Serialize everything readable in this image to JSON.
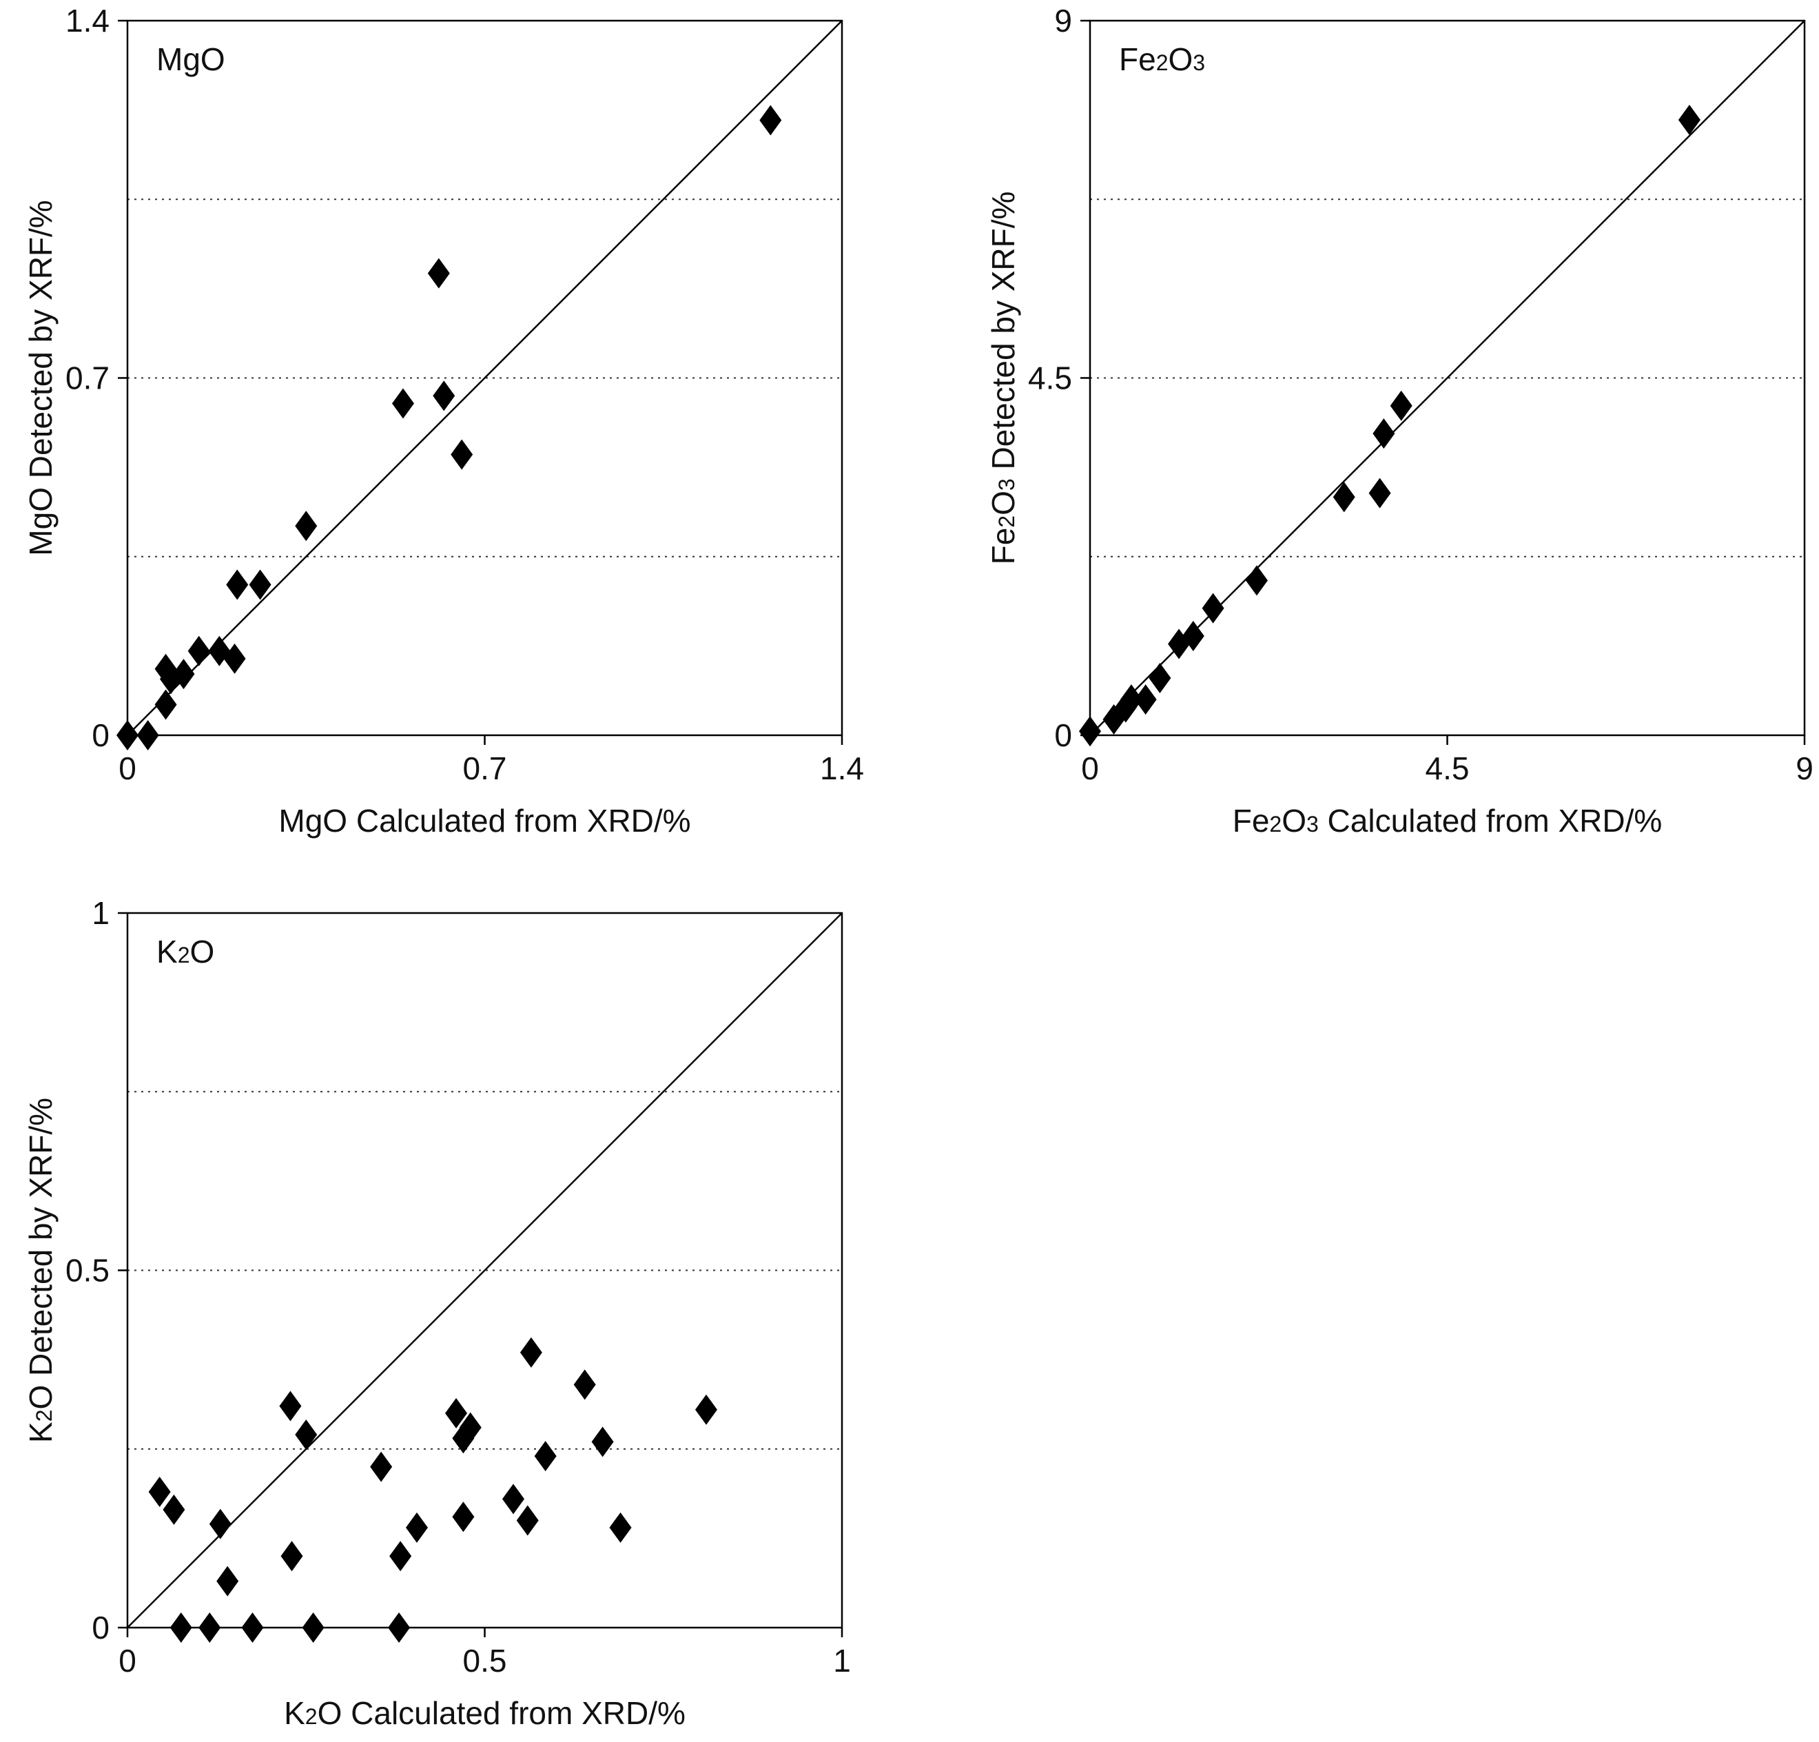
{
  "chart_data": [
    {
      "type": "scatter",
      "panel_label": {
        "pre": "MgO",
        "sub1": "",
        "mid": "",
        "sub2": "",
        "post": ""
      },
      "xlabel": {
        "pre": "MgO Calculated from XRD/%",
        "sub1": "",
        "mid": "",
        "sub2": "",
        "post": ""
      },
      "ylabel": {
        "pre": "MgO Detected by XRF/%",
        "sub1": "",
        "mid": "",
        "sub2": "",
        "post": ""
      },
      "xlim": [
        0,
        1.4
      ],
      "ylim": [
        0,
        1.4
      ],
      "x_ticks": [
        {
          "value": 0,
          "label": "0"
        },
        {
          "value": 0.7,
          "label": "0.7"
        },
        {
          "value": 1.4,
          "label": "1.4"
        }
      ],
      "y_ticks": [
        {
          "value": 0,
          "label": "0"
        },
        {
          "value": 0.7,
          "label": "0.7"
        },
        {
          "value": 1.4,
          "label": "1.4"
        }
      ],
      "gridlines_y": [
        0.35,
        0.7,
        1.05
      ],
      "reference_line": "y = x",
      "marker": "diamond",
      "color": "#000000",
      "points": [
        {
          "x": 0.0,
          "y": 0.0
        },
        {
          "x": 0.04,
          "y": 0.0
        },
        {
          "x": 0.075,
          "y": 0.06
        },
        {
          "x": 0.075,
          "y": 0.13
        },
        {
          "x": 0.085,
          "y": 0.11
        },
        {
          "x": 0.11,
          "y": 0.12
        },
        {
          "x": 0.14,
          "y": 0.165
        },
        {
          "x": 0.18,
          "y": 0.165
        },
        {
          "x": 0.21,
          "y": 0.15
        },
        {
          "x": 0.215,
          "y": 0.295
        },
        {
          "x": 0.26,
          "y": 0.295
        },
        {
          "x": 0.35,
          "y": 0.41
        },
        {
          "x": 0.54,
          "y": 0.65
        },
        {
          "x": 0.62,
          "y": 0.665
        },
        {
          "x": 0.655,
          "y": 0.55
        },
        {
          "x": 0.61,
          "y": 0.905
        },
        {
          "x": 1.26,
          "y": 1.205
        }
      ]
    },
    {
      "type": "scatter",
      "panel_label": {
        "pre": "Fe",
        "sub1": "2",
        "mid": "O",
        "sub2": "3",
        "post": ""
      },
      "xlabel": {
        "pre": "Fe",
        "sub1": "2",
        "mid": "O",
        "sub2": "3",
        "post": " Calculated from XRD/%"
      },
      "ylabel": {
        "pre": "Fe",
        "sub1": "2",
        "mid": "O",
        "sub2": "3",
        "post": " Detected by XRF/%"
      },
      "xlim": [
        0,
        9
      ],
      "ylim": [
        0,
        9
      ],
      "x_ticks": [
        {
          "value": 0,
          "label": "0"
        },
        {
          "value": 4.5,
          "label": "4.5"
        },
        {
          "value": 9,
          "label": "9"
        }
      ],
      "y_ticks": [
        {
          "value": 0,
          "label": "0"
        },
        {
          "value": 4.5,
          "label": "4.5"
        },
        {
          "value": 9,
          "label": "9"
        }
      ],
      "gridlines_y": [
        2.25,
        4.5,
        6.75
      ],
      "reference_line": "y = x",
      "marker": "diamond",
      "color": "#000000",
      "points": [
        {
          "x": 0.0,
          "y": 0.05
        },
        {
          "x": 0.3,
          "y": 0.2
        },
        {
          "x": 0.45,
          "y": 0.35
        },
        {
          "x": 0.52,
          "y": 0.45
        },
        {
          "x": 0.7,
          "y": 0.45
        },
        {
          "x": 0.88,
          "y": 0.72
        },
        {
          "x": 1.12,
          "y": 1.15
        },
        {
          "x": 1.3,
          "y": 1.25
        },
        {
          "x": 1.55,
          "y": 1.6
        },
        {
          "x": 2.1,
          "y": 1.95
        },
        {
          "x": 3.2,
          "y": 3.0
        },
        {
          "x": 3.65,
          "y": 3.05
        },
        {
          "x": 3.7,
          "y": 3.8
        },
        {
          "x": 3.92,
          "y": 4.15
        },
        {
          "x": 7.55,
          "y": 7.75
        }
      ]
    },
    {
      "type": "scatter",
      "panel_label": {
        "pre": "K",
        "sub1": "2",
        "mid": "O",
        "sub2": "",
        "post": ""
      },
      "xlabel": {
        "pre": "K",
        "sub1": "2",
        "mid": "O Calculated from XRD/%",
        "sub2": "",
        "post": ""
      },
      "ylabel": {
        "pre": "K",
        "sub1": "2",
        "mid": "O Detected by XRF/%",
        "sub2": "",
        "post": ""
      },
      "xlim": [
        0,
        1
      ],
      "ylim": [
        0,
        1
      ],
      "x_ticks": [
        {
          "value": 0,
          "label": "0"
        },
        {
          "value": 0.5,
          "label": "0.5"
        },
        {
          "value": 1,
          "label": "1"
        }
      ],
      "y_ticks": [
        {
          "value": 0,
          "label": "0"
        },
        {
          "value": 0.5,
          "label": "0.5"
        },
        {
          "value": 1,
          "label": "1"
        }
      ],
      "gridlines_y": [
        0.25,
        0.5,
        0.75
      ],
      "reference_line": "y = x",
      "marker": "diamond",
      "color": "#000000",
      "points": [
        {
          "x": 0.045,
          "y": 0.19
        },
        {
          "x": 0.065,
          "y": 0.165
        },
        {
          "x": 0.075,
          "y": 0.0
        },
        {
          "x": 0.115,
          "y": 0.0
        },
        {
          "x": 0.13,
          "y": 0.145
        },
        {
          "x": 0.14,
          "y": 0.065
        },
        {
          "x": 0.175,
          "y": 0.0
        },
        {
          "x": 0.23,
          "y": 0.1
        },
        {
          "x": 0.228,
          "y": 0.31
        },
        {
          "x": 0.25,
          "y": 0.27
        },
        {
          "x": 0.26,
          "y": 0.0
        },
        {
          "x": 0.355,
          "y": 0.225
        },
        {
          "x": 0.38,
          "y": 0.0
        },
        {
          "x": 0.382,
          "y": 0.1
        },
        {
          "x": 0.405,
          "y": 0.14
        },
        {
          "x": 0.46,
          "y": 0.3
        },
        {
          "x": 0.47,
          "y": 0.155
        },
        {
          "x": 0.47,
          "y": 0.265
        },
        {
          "x": 0.48,
          "y": 0.28
        },
        {
          "x": 0.54,
          "y": 0.18
        },
        {
          "x": 0.56,
          "y": 0.15
        },
        {
          "x": 0.565,
          "y": 0.385
        },
        {
          "x": 0.585,
          "y": 0.24
        },
        {
          "x": 0.64,
          "y": 0.34
        },
        {
          "x": 0.665,
          "y": 0.26
        },
        {
          "x": 0.69,
          "y": 0.14
        },
        {
          "x": 0.81,
          "y": 0.305
        }
      ]
    }
  ]
}
